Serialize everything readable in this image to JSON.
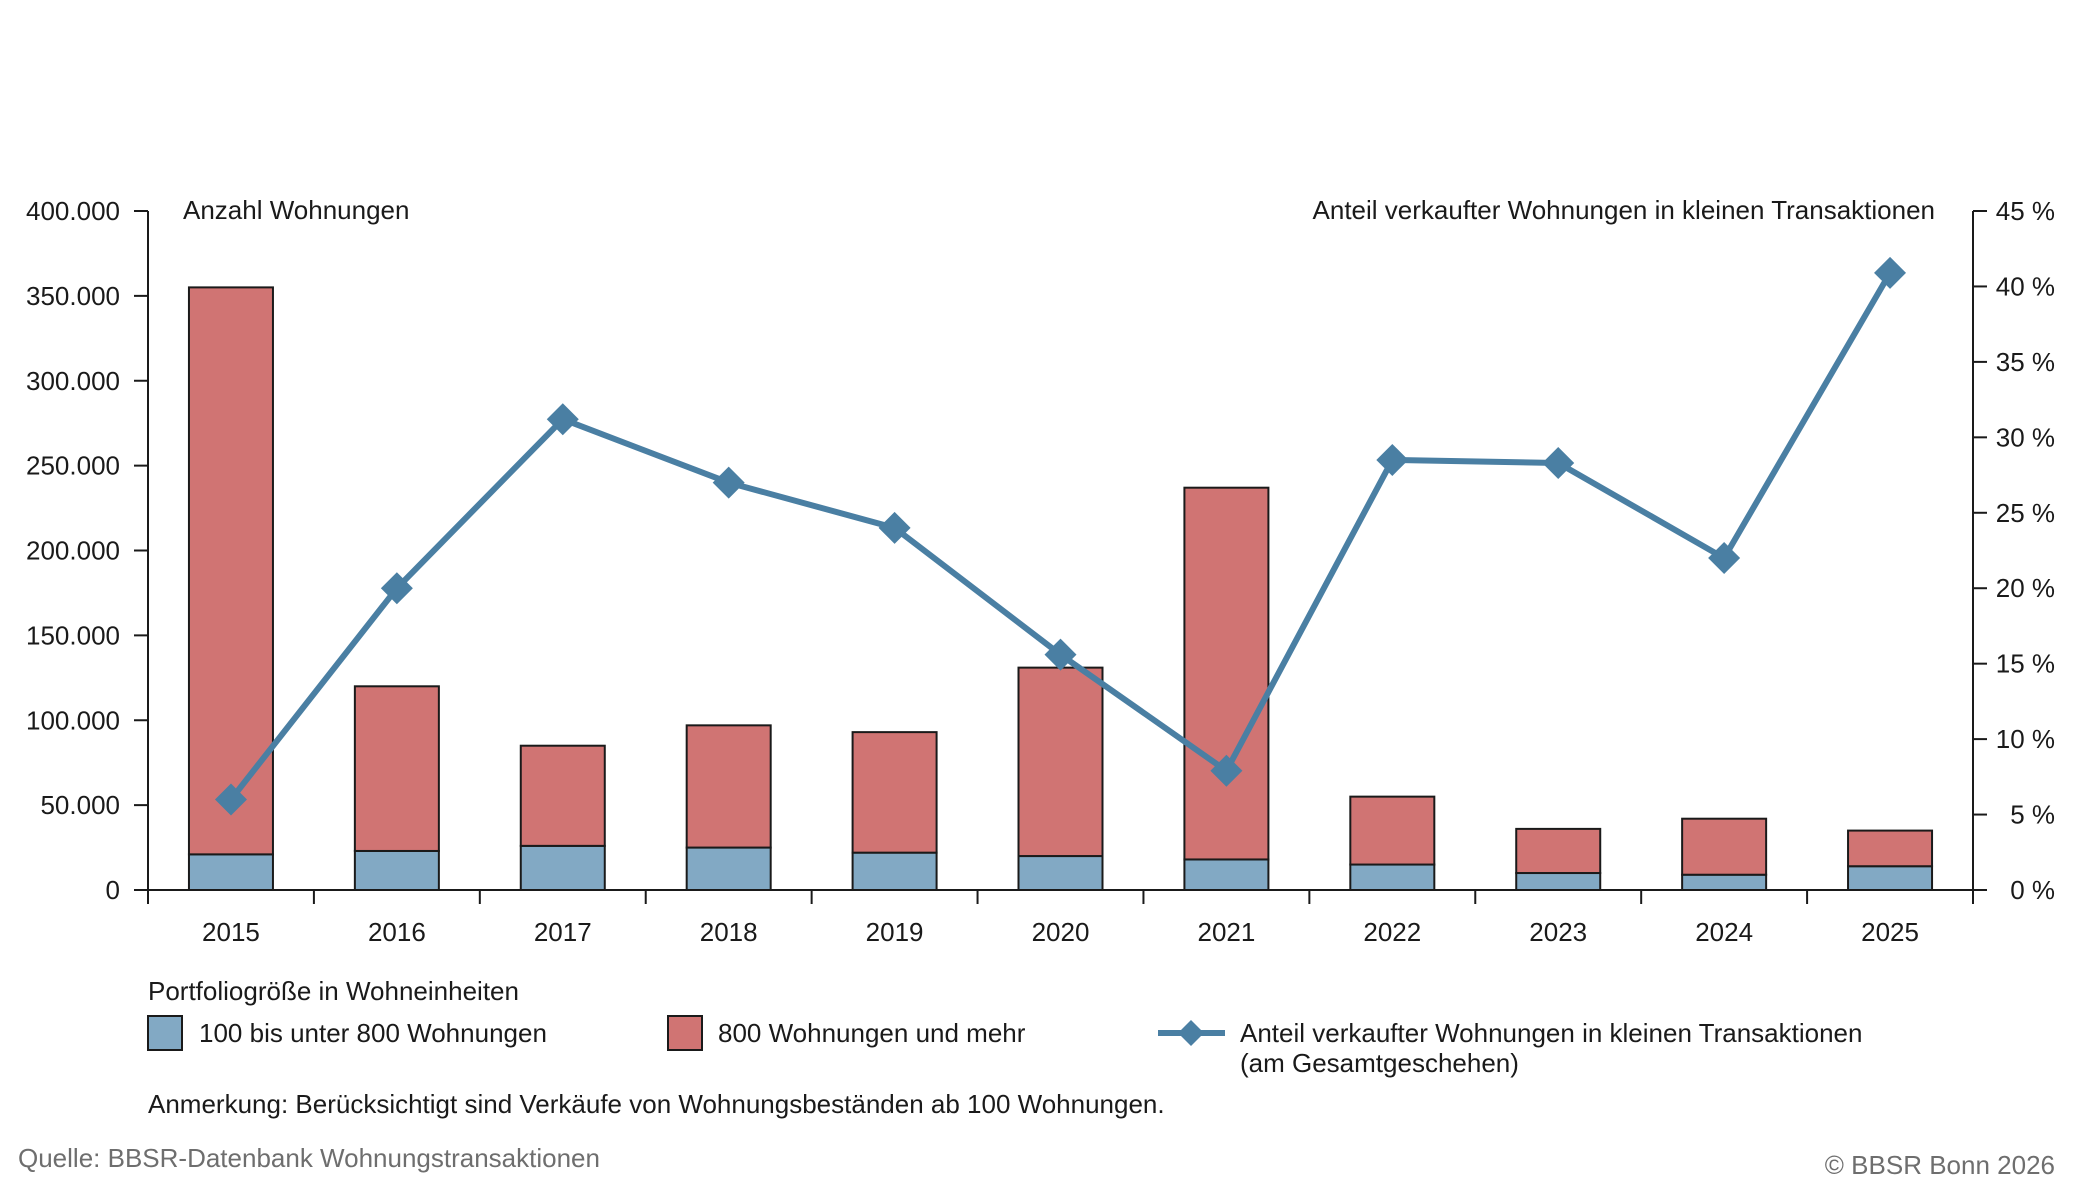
{
  "chart_data": {
    "type": "bar",
    "stacked": true,
    "categories": [
      "2015",
      "2016",
      "2017",
      "2018",
      "2019",
      "2020",
      "2021",
      "2022",
      "2023",
      "2024",
      "2025"
    ],
    "series": [
      {
        "name": "100 bis unter 800 Wohnungen",
        "color": "#82a9c4",
        "values": [
          21000,
          23000,
          26000,
          25000,
          22000,
          20000,
          18000,
          15000,
          10000,
          9000,
          14000
        ]
      },
      {
        "name": "800 Wohnungen und mehr",
        "color": "#d07473",
        "values": [
          334000,
          97000,
          59000,
          72000,
          71000,
          111000,
          219000,
          40000,
          26000,
          33000,
          21000
        ]
      }
    ],
    "line_series": {
      "name": "Anteil verkaufter Wohnungen in kleinen Transaktionen",
      "name_line2": "(am Gesamtgeschehen)",
      "color": "#4a7fa3",
      "axis": "right",
      "values": [
        6.0,
        20.0,
        31.2,
        27.0,
        24.0,
        15.6,
        7.9,
        28.5,
        28.3,
        22.0,
        40.9
      ]
    },
    "y_left": {
      "title": "Anzahl Wohnungen",
      "range": [
        0,
        400000
      ],
      "ticks": [
        0,
        50000,
        100000,
        150000,
        200000,
        250000,
        300000,
        350000,
        400000
      ],
      "tick_labels": [
        "0",
        "50.000",
        "100.000",
        "150.000",
        "200.000",
        "250.000",
        "300.000",
        "350.000",
        "400.000"
      ]
    },
    "y_right": {
      "title": "Anteil verkaufter Wohnungen in kleinen Transaktionen",
      "range": [
        0,
        45
      ],
      "ticks": [
        0,
        5,
        10,
        15,
        20,
        25,
        30,
        35,
        40,
        45
      ],
      "tick_labels": [
        "0 %",
        "5 %",
        "10 %",
        "15 %",
        "20 %",
        "25 %",
        "30 %",
        "35 %",
        "40 %",
        "45 %"
      ]
    },
    "legend": {
      "title": "Portfoliogröße in Wohneinheiten",
      "position": "bottom"
    },
    "grid": false
  },
  "note": "Anmerkung: Berücksichtigt sind Verkäufe von Wohnungsbeständen ab 100 Wohnungen.",
  "source": "Quelle: BBSR-Datenbank Wohnungstransaktionen",
  "copyright": "© BBSR Bonn 2026"
}
